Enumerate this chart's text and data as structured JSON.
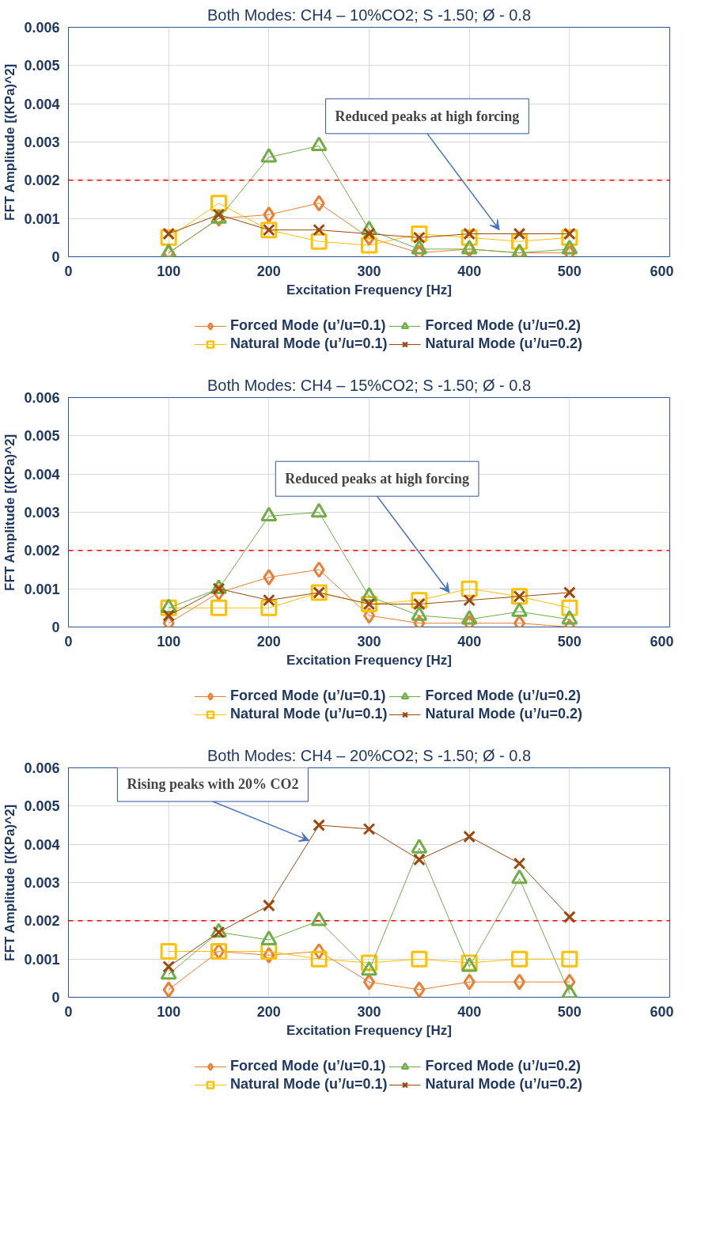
{
  "chart_data": [
    {
      "type": "line",
      "title": "Both Modes: CH4 – 10%CO2; S -1.50; Ø - 0.8",
      "xlabel": "Excitation Frequency [Hz]",
      "ylabel": "FFT Amplitude [(KPa)^2]",
      "x": [
        100,
        150,
        200,
        250,
        300,
        350,
        400,
        450,
        500
      ],
      "series": [
        {
          "name": "Forced Mode (u’/u=0.1)",
          "color": "#ed7d31",
          "marker": "diamond",
          "values": [
            0.0001,
            0.001,
            0.0011,
            0.0014,
            0.0005,
            0.0001,
            0.0002,
            0.0001,
            0.0001
          ]
        },
        {
          "name": "Natural Mode (u’/u=0.1)",
          "color": "#ffc000",
          "marker": "square",
          "values": [
            0.0005,
            0.0014,
            0.0007,
            0.0004,
            0.0003,
            0.0006,
            0.0005,
            0.0004,
            0.0005
          ]
        },
        {
          "name": "Forced Mode (u’/u=0.2)",
          "color": "#70ad47",
          "marker": "triangle",
          "values": [
            0.0001,
            0.001,
            0.0026,
            0.0029,
            0.0007,
            0.0002,
            0.0002,
            0.0001,
            0.0002
          ]
        },
        {
          "name": "Natural Mode (u’/u=0.2)",
          "color": "#9e480e",
          "marker": "cross",
          "values": [
            0.0006,
            0.0011,
            0.0007,
            0.0007,
            0.0006,
            0.0005,
            0.0006,
            0.0006,
            0.0006
          ]
        }
      ],
      "xlim": [
        0,
        600
      ],
      "xticks": [
        0,
        100,
        200,
        300,
        400,
        500,
        600
      ],
      "ylim": [
        0,
        0.006
      ],
      "yticks": [
        0,
        0.001,
        0.002,
        0.003,
        0.004,
        0.005,
        0.006
      ],
      "ref_lines": [
        {
          "axis": "y",
          "value": 0.002,
          "color": "#ff0000",
          "line_style": "dashed"
        }
      ],
      "annotations": [
        {
          "text": "Reduced peaks at high forcing",
          "x": 430,
          "y": 0.0007
        }
      ],
      "grid": true,
      "legend": "bottom"
    },
    {
      "type": "line",
      "title": "Both Modes: CH4 – 15%CO2; S -1.50; Ø - 0.8",
      "xlabel": "Excitation Frequency [Hz]",
      "ylabel": "FFT Amplitude [(KPa)^2]",
      "x": [
        100,
        150,
        200,
        250,
        300,
        350,
        400,
        450,
        500
      ],
      "series": [
        {
          "name": "Forced Mode (u’/u=0.1)",
          "color": "#ed7d31",
          "marker": "diamond",
          "values": [
            0.0001,
            0.0009,
            0.0013,
            0.0015,
            0.0003,
            0.0001,
            0.0001,
            0.0001,
            0.0
          ]
        },
        {
          "name": "Natural Mode (u’/u=0.1)",
          "color": "#ffc000",
          "marker": "square",
          "values": [
            0.0005,
            0.0005,
            0.0005,
            0.0009,
            0.0006,
            0.0007,
            0.001,
            0.0008,
            0.0005
          ]
        },
        {
          "name": "Forced Mode (u’/u=0.2)",
          "color": "#70ad47",
          "marker": "triangle",
          "values": [
            0.0005,
            0.001,
            0.0029,
            0.003,
            0.0008,
            0.0003,
            0.0002,
            0.0004,
            0.0002
          ]
        },
        {
          "name": "Natural Mode (u’/u=0.2)",
          "color": "#9e480e",
          "marker": "cross",
          "values": [
            0.0003,
            0.001,
            0.0007,
            0.0009,
            0.0006,
            0.0006,
            0.0007,
            0.0008,
            0.0009
          ]
        }
      ],
      "xlim": [
        0,
        600
      ],
      "xticks": [
        0,
        100,
        200,
        300,
        400,
        500,
        600
      ],
      "ylim": [
        0,
        0.006
      ],
      "yticks": [
        0,
        0.001,
        0.002,
        0.003,
        0.004,
        0.005,
        0.006
      ],
      "ref_lines": [
        {
          "axis": "y",
          "value": 0.002,
          "color": "#ff0000",
          "line_style": "dashed"
        }
      ],
      "annotations": [
        {
          "text": "Reduced peaks at high forcing",
          "x": 380,
          "y": 0.0009
        }
      ],
      "grid": true,
      "legend": "bottom"
    },
    {
      "type": "line",
      "title": "Both Modes: CH4 – 20%CO2; S -1.50; Ø - 0.8",
      "xlabel": "Excitation Frequency [Hz]",
      "ylabel": "FFT Amplitude [(KPa)^2]",
      "x": [
        100,
        150,
        200,
        250,
        300,
        350,
        400,
        450,
        500
      ],
      "series": [
        {
          "name": "Forced Mode (u’/u=0.1)",
          "color": "#ed7d31",
          "marker": "diamond",
          "values": [
            0.0002,
            0.0012,
            0.0011,
            0.0012,
            0.0004,
            0.0002,
            0.0004,
            0.0004,
            0.0004
          ]
        },
        {
          "name": "Natural Mode (u’/u=0.1)",
          "color": "#ffc000",
          "marker": "square",
          "values": [
            0.0012,
            0.0012,
            0.0012,
            0.001,
            0.0009,
            0.001,
            0.0009,
            0.001,
            0.001
          ]
        },
        {
          "name": "Forced Mode (u’/u=0.2)",
          "color": "#70ad47",
          "marker": "triangle",
          "values": [
            0.0006,
            0.0017,
            0.0015,
            0.002,
            0.0007,
            0.0039,
            0.0008,
            0.0031,
            0.0001
          ]
        },
        {
          "name": "Natural Mode (u’/u=0.2)",
          "color": "#9e480e",
          "marker": "cross",
          "values": [
            0.0008,
            0.0017,
            0.0024,
            0.0045,
            0.0044,
            0.0036,
            0.0042,
            0.0035,
            0.0021
          ]
        }
      ],
      "xlim": [
        0,
        600
      ],
      "xticks": [
        0,
        100,
        200,
        300,
        400,
        500,
        600
      ],
      "ylim": [
        0,
        0.006
      ],
      "yticks": [
        0,
        0.001,
        0.002,
        0.003,
        0.004,
        0.005,
        0.006
      ],
      "ref_lines": [
        {
          "axis": "y",
          "value": 0.002,
          "color": "#ff0000",
          "line_style": "dashed"
        }
      ],
      "annotations": [
        {
          "text": "Rising peaks with 20% CO2",
          "x": 240,
          "y": 0.0041
        }
      ],
      "grid": true,
      "legend": "bottom"
    }
  ]
}
